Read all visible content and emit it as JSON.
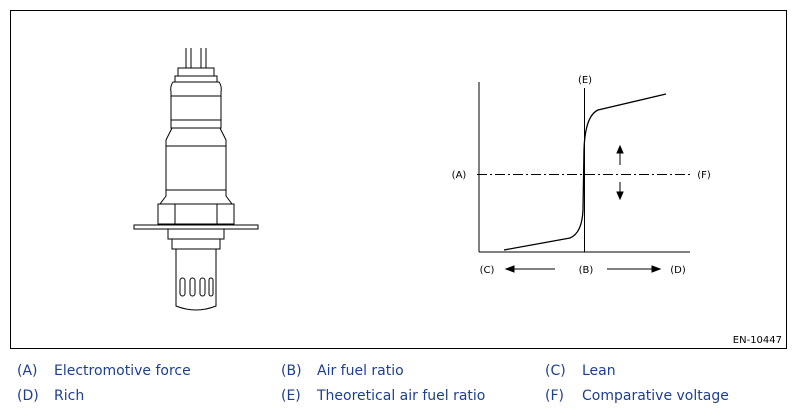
{
  "diagram": {
    "labels": {
      "e": "(E)",
      "a": "(A)",
      "f": "(F)",
      "c": "(C)",
      "b": "(B)",
      "d": "(D)"
    },
    "figure_id": "EN-10447"
  },
  "legend": [
    {
      "key": "(A)",
      "text": "Electromotive force"
    },
    {
      "key": "(B)",
      "text": "Air fuel ratio"
    },
    {
      "key": "(C)",
      "text": "Lean"
    },
    {
      "key": "(D)",
      "text": "Rich"
    },
    {
      "key": "(E)",
      "text": "Theoretical air fuel ratio"
    },
    {
      "key": "(F)",
      "text": "Comparative voltage"
    }
  ]
}
